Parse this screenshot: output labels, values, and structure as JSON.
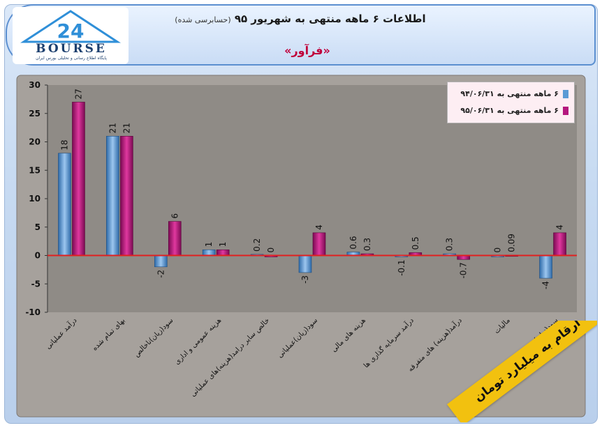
{
  "header": {
    "title": "اطلاعات ۶ ماهه منتهی به شهریور ۹۵",
    "title_note": "(حسابرسی شده)",
    "company": "«فرآور»",
    "logo_text": "BOURSE",
    "logo_subtitle": "پایگاه اطلاع رسانی و تحلیلی بورس ایران"
  },
  "banner": {
    "text": "ارقام به میلیارد تومان"
  },
  "colors": {
    "series1": "#5b9bd5",
    "series2": "#b5177e",
    "plot_bg": "#8f8b86",
    "zero_line": "#e02020"
  },
  "chart_data": {
    "type": "bar",
    "categories": [
      "درآمد عملیاتی",
      "بهای تمام شده",
      "سود(زیان)ناخالص",
      "هزینه عمومی و اداری",
      "خالص سایر درامد(هزینه)های عملیاتی",
      "سود(زیان)عملیاتی",
      "هزینه های مالی",
      "درآمد سرمایه گذاری ها",
      "درآمد(هزینه) های متفرقه",
      "مالیات",
      "سود(زیان) خالص"
    ],
    "series": [
      {
        "name": "۶ ماهه منتهی به ۹۴/۰۶/۳۱",
        "values": [
          18,
          21,
          -2,
          1,
          0.2,
          -3,
          0.6,
          -0.1,
          0.3,
          0,
          -4
        ],
        "labels": [
          "18",
          "21",
          "-2",
          "1",
          "0.2",
          "-3",
          "0.6",
          "-0.1",
          "0.3",
          "0",
          "-4"
        ]
      },
      {
        "name": "۶ ماهه منتهی به ۹۵/۰۶/۳۱",
        "values": [
          27,
          21,
          6,
          1,
          0,
          4,
          0.3,
          0.5,
          -0.7,
          0.09,
          4
        ],
        "labels": [
          "27",
          "21",
          "6",
          "1",
          "0",
          "4",
          "0.3",
          "0.5",
          "-0.7",
          "0.09",
          "4"
        ]
      }
    ],
    "ylim": [
      -10,
      30
    ],
    "yticks": [
      30,
      25,
      20,
      15,
      10,
      5,
      0,
      -5,
      -10
    ],
    "grid": false,
    "legend_position": "top-right"
  }
}
